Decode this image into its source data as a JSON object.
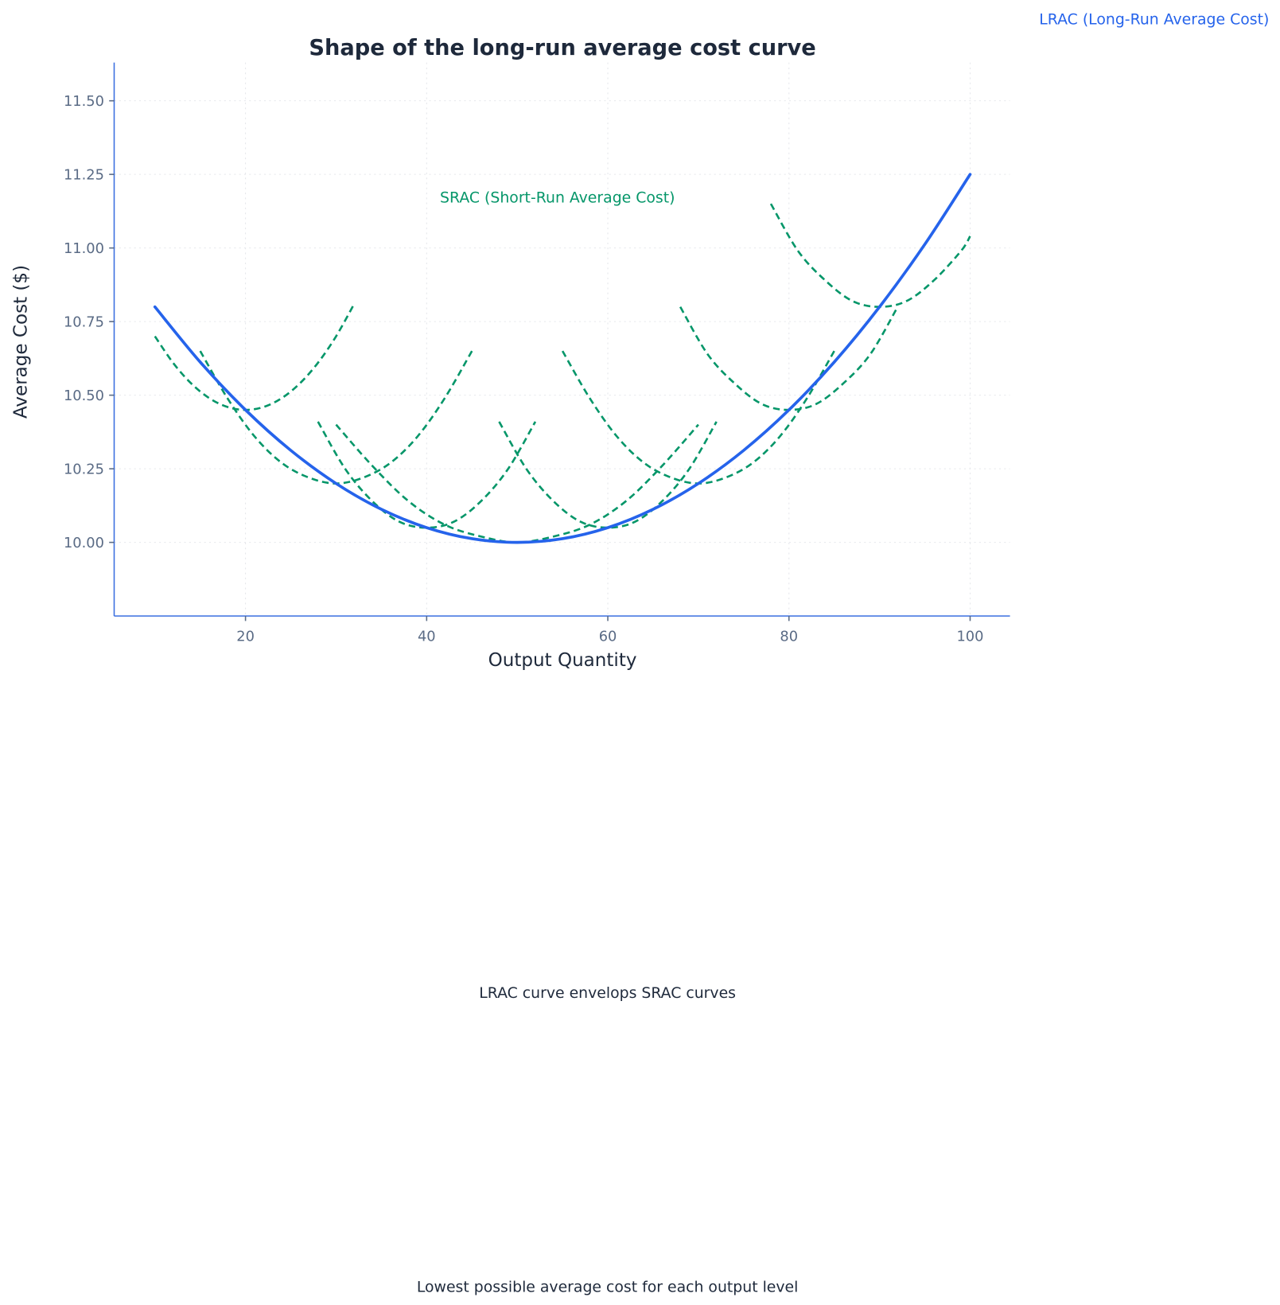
{
  "chart_data": {
    "type": "line",
    "title": "Shape of the long-run average cost curve",
    "xlabel": "Output Quantity",
    "ylabel": "Average Cost ($)",
    "xlim": [
      5.5,
      104.4
    ],
    "ylim": [
      9.75,
      11.63
    ],
    "xticks": [
      20,
      40,
      60,
      80,
      100
    ],
    "yticks": [
      "10.00",
      "10.25",
      "10.50",
      "10.75",
      "11.00",
      "11.25",
      "11.50"
    ],
    "grid": true,
    "colors": {
      "lrac": "#2563eb",
      "srac": "#059669",
      "spine": "#3b6fe0",
      "tick": "#5a6b85",
      "title": "#1e293b"
    },
    "lrac": {
      "label": "LRAC (Long-Run Average Cost)",
      "points": [
        [
          10,
          10.8
        ],
        [
          15,
          10.6125
        ],
        [
          20,
          10.45
        ],
        [
          25,
          10.3125
        ],
        [
          30,
          10.2
        ],
        [
          35,
          10.1125
        ],
        [
          40,
          10.05
        ],
        [
          45,
          10.0125
        ],
        [
          50,
          10.0
        ],
        [
          55,
          10.0125
        ],
        [
          60,
          10.05
        ],
        [
          65,
          10.1125
        ],
        [
          70,
          10.2
        ],
        [
          75,
          10.3125
        ],
        [
          80,
          10.45
        ],
        [
          85,
          10.6125
        ],
        [
          90,
          10.8
        ],
        [
          95,
          11.0125
        ],
        [
          100,
          11.25
        ]
      ]
    },
    "srac": {
      "label": "SRAC (Short-Run Average Cost)",
      "curves": [
        [
          [
            10,
            10.7
          ],
          [
            12,
            10.61
          ],
          [
            14,
            10.54
          ],
          [
            16,
            10.49
          ],
          [
            18,
            10.46
          ],
          [
            20,
            10.45
          ],
          [
            22,
            10.46
          ],
          [
            24,
            10.49
          ],
          [
            26,
            10.54
          ],
          [
            28,
            10.61
          ],
          [
            30,
            10.7
          ],
          [
            32,
            10.81
          ]
        ],
        [
          [
            15,
            10.65
          ],
          [
            18,
            10.49
          ],
          [
            21,
            10.36
          ],
          [
            24,
            10.27
          ],
          [
            27,
            10.22
          ],
          [
            30,
            10.2
          ],
          [
            33,
            10.22
          ],
          [
            36,
            10.27
          ],
          [
            39,
            10.36
          ],
          [
            42,
            10.49
          ],
          [
            45,
            10.65
          ]
        ],
        [
          [
            28,
            10.41
          ],
          [
            31,
            10.25
          ],
          [
            34,
            10.14
          ],
          [
            37,
            10.07
          ],
          [
            40,
            10.05
          ],
          [
            43,
            10.07
          ],
          [
            46,
            10.14
          ],
          [
            49,
            10.25
          ],
          [
            52,
            10.41
          ]
        ],
        [
          [
            30,
            10.4
          ],
          [
            34,
            10.26
          ],
          [
            38,
            10.14
          ],
          [
            42,
            10.06
          ],
          [
            46,
            10.02
          ],
          [
            50,
            10.0
          ],
          [
            54,
            10.02
          ],
          [
            58,
            10.06
          ],
          [
            62,
            10.14
          ],
          [
            66,
            10.26
          ],
          [
            70,
            10.4
          ]
        ],
        [
          [
            48,
            10.41
          ],
          [
            51,
            10.25
          ],
          [
            54,
            10.14
          ],
          [
            57,
            10.07
          ],
          [
            60,
            10.05
          ],
          [
            63,
            10.07
          ],
          [
            66,
            10.14
          ],
          [
            69,
            10.25
          ],
          [
            72,
            10.41
          ]
        ],
        [
          [
            55,
            10.65
          ],
          [
            58,
            10.49
          ],
          [
            61,
            10.36
          ],
          [
            64,
            10.27
          ],
          [
            67,
            10.22
          ],
          [
            70,
            10.2
          ],
          [
            73,
            10.22
          ],
          [
            76,
            10.27
          ],
          [
            79,
            10.36
          ],
          [
            82,
            10.49
          ],
          [
            85,
            10.65
          ]
        ],
        [
          [
            68,
            10.8
          ],
          [
            71,
            10.64
          ],
          [
            74,
            10.54
          ],
          [
            77,
            10.47
          ],
          [
            80,
            10.45
          ],
          [
            83,
            10.47
          ],
          [
            86,
            10.54
          ],
          [
            89,
            10.64
          ],
          [
            92,
            10.8
          ]
        ],
        [
          [
            78,
            11.15
          ],
          [
            81,
            10.99
          ],
          [
            84,
            10.89
          ],
          [
            87,
            10.82
          ],
          [
            90,
            10.8
          ],
          [
            93,
            10.82
          ],
          [
            96,
            10.89
          ],
          [
            99,
            10.99
          ],
          [
            100,
            11.04
          ]
        ]
      ]
    },
    "annotations": {
      "envelope": "LRAC curve envelops SRAC curves",
      "lowest": "Lowest possible average cost for each output level"
    }
  }
}
